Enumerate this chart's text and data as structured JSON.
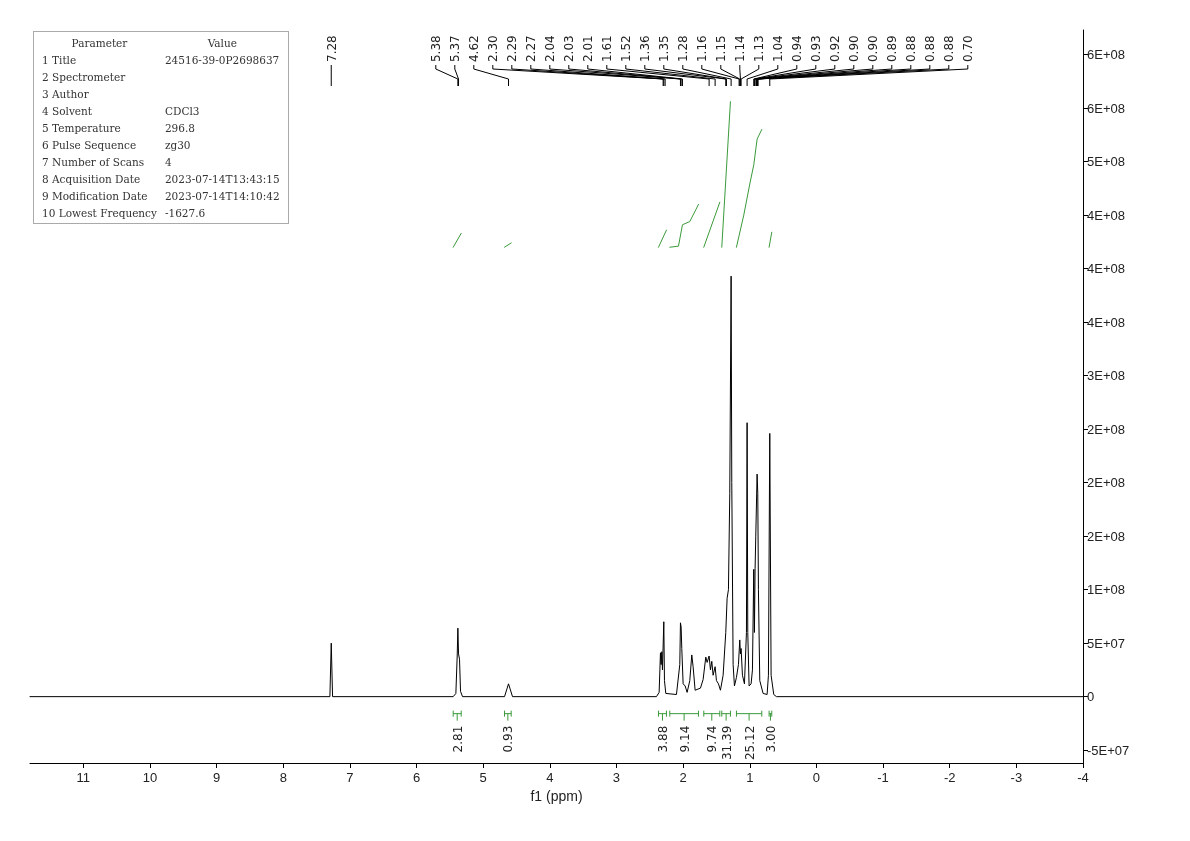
{
  "chart_data": {
    "type": "line",
    "xlabel": "f1 (ppm)",
    "xlim": [
      11.8,
      -4
    ],
    "xticks": [
      11,
      10,
      9,
      8,
      7,
      6,
      5,
      4,
      3,
      2,
      1,
      0,
      -1,
      -2,
      -3,
      -4
    ],
    "ylim": [
      -62000000.0,
      623000000.0
    ],
    "yticks": [
      {
        "value": -50000000.0,
        "label": "-5E+07"
      },
      0,
      {
        "value": 50000000.0,
        "label": "5E+07"
      },
      {
        "value": 100000000.0,
        "label": "1E+08"
      },
      {
        "value": 150000000.0,
        "label": "2E+08"
      },
      {
        "value": 200000000.0,
        "label": "2E+08"
      },
      {
        "value": 250000000.0,
        "label": "2E+08"
      },
      {
        "value": 300000000.0,
        "label": "3E+08"
      },
      {
        "value": 350000000.0,
        "label": "4E+08"
      },
      {
        "value": 400000000.0,
        "label": "4E+08"
      },
      {
        "value": 450000000.0,
        "label": "4E+08"
      },
      {
        "value": 500000000.0,
        "label": "5E+08"
      },
      {
        "value": 550000000.0,
        "label": "6E+08"
      },
      {
        "value": 600000000.0,
        "label": "6E+08"
      }
    ],
    "grid": false,
    "marker": "none",
    "line_style": "solid",
    "series": [
      {
        "color": "#000000",
        "x": [
          11.8,
          7.3,
          7.28,
          7.26,
          5.45,
          5.41,
          5.39,
          5.38,
          5.37,
          5.355,
          5.34,
          5.31,
          4.68,
          4.64,
          4.62,
          4.6,
          4.56,
          2.4,
          2.36,
          2.34,
          2.33,
          2.32,
          2.31,
          2.29,
          2.28,
          2.26,
          2.1,
          2.05,
          2.04,
          2.03,
          2.02,
          2.0,
          1.97,
          1.94,
          1.9,
          1.87,
          1.85,
          1.82,
          1.74,
          1.7,
          1.66,
          1.64,
          1.61,
          1.59,
          1.57,
          1.55,
          1.52,
          1.5,
          1.47,
          1.44,
          1.4,
          1.36,
          1.34,
          1.32,
          1.3,
          1.28,
          1.27,
          1.25,
          1.23,
          1.2,
          1.17,
          1.15,
          1.14,
          1.13,
          1.11,
          1.08,
          1.05,
          1.04,
          1.03,
          1.01,
          0.98,
          0.96,
          0.94,
          0.93,
          0.92,
          0.91,
          0.89,
          0.88,
          0.87,
          0.85,
          0.8,
          0.74,
          0.72,
          0.7,
          0.68,
          0.64,
          0.6,
          -4
        ],
        "values": [
          0,
          0,
          50000000.0,
          0,
          0,
          3000000.0,
          38000000.0,
          64000000.0,
          40000000.0,
          35000000.0,
          5000000.0,
          0,
          0,
          8000000.0,
          12000000.0,
          8000000.0,
          0,
          0,
          4000000.0,
          41000000.0,
          30000000.0,
          42000000.0,
          25000000.0,
          70000000.0,
          15000000.0,
          3000000.0,
          2000000.0,
          30000000.0,
          69000000.0,
          65000000.0,
          45000000.0,
          12000000.0,
          10000000.0,
          4000000.0,
          15000000.0,
          39000000.0,
          28000000.0,
          6000000.0,
          8000000.0,
          16000000.0,
          37000000.0,
          32000000.0,
          38000000.0,
          25000000.0,
          33000000.0,
          20000000.0,
          28000000.0,
          15000000.0,
          12000000.0,
          6000000.0,
          20000000.0,
          60000000.0,
          92000000.0,
          100000000.0,
          190000000.0,
          393000000.0,
          200000000.0,
          30000000.0,
          10000000.0,
          18000000.0,
          30000000.0,
          53000000.0,
          40000000.0,
          45000000.0,
          20000000.0,
          12000000.0,
          60000000.0,
          256000000.0,
          60000000.0,
          10000000.0,
          12000000.0,
          25000000.0,
          119000000.0,
          60000000.0,
          120000000.0,
          150000000.0,
          208000000.0,
          190000000.0,
          100000000.0,
          15000000.0,
          3000000.0,
          2000000.0,
          20000000.0,
          246000000.0,
          20000000.0,
          2000000.0,
          0,
          0
        ]
      },
      {
        "color": "#3a9a3a",
        "x": [
          5.45,
          5.33,
          null,
          4.68,
          4.58,
          null,
          2.37,
          2.25,
          null,
          2.2,
          2.07,
          2.01,
          1.9,
          1.81,
          1.77,
          null,
          1.69,
          1.45,
          null,
          1.42,
          1.29,
          null,
          1.2,
          1.09,
          1.0,
          0.94,
          0.89,
          0.82,
          null,
          0.71,
          0.67
        ],
        "values": [
          420000000.0,
          433000000.0,
          null,
          420000000.0,
          424000000.0,
          null,
          420000000.0,
          436000000.0,
          null,
          420000000.0,
          421000000.0,
          441000000.0,
          444000000.0,
          455000000.0,
          460000000.0,
          null,
          420000000.0,
          462000000.0,
          null,
          420000000.0,
          556000000.0,
          null,
          420000000.0,
          450000000.0,
          479000000.0,
          497000000.0,
          521000000.0,
          530000000.0,
          null,
          420000000.0,
          434000000.0
        ]
      }
    ],
    "annotations": [
      "Parameter\tValue",
      "1 Title\t24516-39-0P2698637",
      "2 Spectrometer",
      "3 Author",
      "4 Solvent\tCDCl3",
      "5 Temperature\t296.8",
      "6 Pulse Sequence\tzg30",
      "7 Number of Scans\t4",
      "8 Acquisition Date\t2023-07-14T13:43:15",
      "9 Modification Date\t2023-07-14T14:10:42",
      "10 Lowest Frequency\t-1627.6",
      {
        "text": "7.28",
        "x": 7.28
      },
      {
        "text": "5.38",
        "x": 5.38
      },
      {
        "text": "5.37",
        "x": 5.37
      },
      {
        "text": "4.62",
        "x": 4.62
      },
      {
        "text": "2.30",
        "x": 2.3
      },
      {
        "text": "2.29",
        "x": 2.29
      },
      {
        "text": "2.27",
        "x": 2.27
      },
      {
        "text": "2.04",
        "x": 2.04
      },
      {
        "text": "2.03",
        "x": 2.03
      },
      {
        "text": "2.01",
        "x": 2.01
      },
      {
        "text": "1.61",
        "x": 1.61
      },
      {
        "text": "1.52",
        "x": 1.52
      },
      {
        "text": "1.36",
        "x": 1.36
      },
      {
        "text": "1.35",
        "x": 1.35
      },
      {
        "text": "1.28",
        "x": 1.28
      },
      {
        "text": "1.16",
        "x": 1.16
      },
      {
        "text": "1.15",
        "x": 1.15
      },
      {
        "text": "1.14",
        "x": 1.14
      },
      {
        "text": "1.13",
        "x": 1.13
      },
      {
        "text": "1.04",
        "x": 1.04
      },
      {
        "text": "0.94",
        "x": 0.94
      },
      {
        "text": "0.93",
        "x": 0.93
      },
      {
        "text": "0.92",
        "x": 0.92
      },
      {
        "text": "0.90",
        "x": 0.9
      },
      {
        "text": "0.90",
        "x": 0.9
      },
      {
        "text": "0.89",
        "x": 0.89
      },
      {
        "text": "0.88",
        "x": 0.88
      },
      {
        "text": "0.88",
        "x": 0.88
      },
      {
        "text": "0.88",
        "x": 0.88
      },
      {
        "text": "0.70",
        "x": 0.7
      },
      "2.81",
      "0.93",
      "3.88",
      "9.14",
      "9.74",
      "31.39",
      "25.12",
      "3.00"
    ]
  }
}
